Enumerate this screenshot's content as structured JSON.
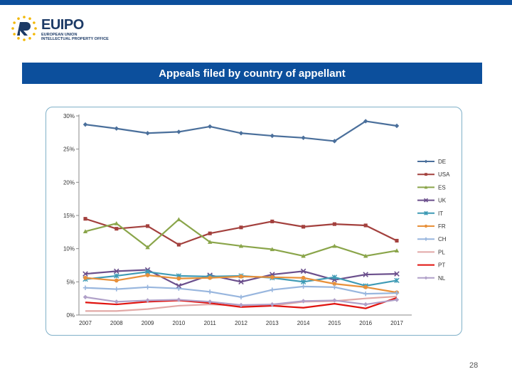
{
  "header": {
    "logo": {
      "icon": "euipo-circle-of-stars-icon",
      "name_prefix": "EU",
      "name_suffix": "IPO",
      "subtitle_line1": "EUROPEAN UNION",
      "subtitle_line2": "INTELLECTUAL PROPERTY OFFICE"
    }
  },
  "slide": {
    "title": "Appeals filed by country of appellant",
    "page_number": "28"
  },
  "colors": {
    "brand_blue": "#0c4f9c"
  },
  "chart_data": {
    "type": "line",
    "title": "Appeals filed by country of appellant",
    "xlabel": "",
    "ylabel": "",
    "x": [
      "2007",
      "2008",
      "2009",
      "2010",
      "2011",
      "2012",
      "2013",
      "2014",
      "2015",
      "2016",
      "2017"
    ],
    "ylim": [
      0,
      30
    ],
    "yticks": [
      0,
      5,
      10,
      15,
      20,
      25,
      30
    ],
    "ytick_labels": [
      "0%",
      "5%",
      "10%",
      "15%",
      "20%",
      "25%",
      "30%"
    ],
    "grid": false,
    "legend": "right",
    "series": [
      {
        "name": "DE",
        "color": "#4a6f9b",
        "marker": "diamond",
        "values": [
          28.7,
          28.1,
          27.4,
          27.6,
          28.4,
          27.4,
          27.0,
          26.7,
          26.2,
          29.2,
          28.5
        ]
      },
      {
        "name": "USA",
        "color": "#a3403d",
        "marker": "square",
        "values": [
          14.5,
          13.0,
          13.4,
          10.6,
          12.3,
          13.2,
          14.1,
          13.3,
          13.7,
          13.5,
          11.2
        ]
      },
      {
        "name": "ES",
        "color": "#8aa54a",
        "marker": "triangle",
        "values": [
          12.6,
          13.8,
          10.2,
          14.4,
          11.0,
          10.4,
          9.9,
          8.9,
          10.4,
          8.9,
          9.7
        ]
      },
      {
        "name": "UK",
        "color": "#6b4f8c",
        "marker": "x",
        "values": [
          6.2,
          6.6,
          6.8,
          4.4,
          6.0,
          5.0,
          6.1,
          6.6,
          5.3,
          6.1,
          6.2
        ]
      },
      {
        "name": "IT",
        "color": "#3f9bb5",
        "marker": "star",
        "values": [
          5.4,
          5.9,
          6.5,
          5.9,
          5.8,
          5.9,
          5.6,
          5.0,
          5.7,
          4.4,
          5.2
        ]
      },
      {
        "name": "FR",
        "color": "#e8903a",
        "marker": "circle",
        "values": [
          5.6,
          5.2,
          6.0,
          5.5,
          5.6,
          5.8,
          5.7,
          5.6,
          4.7,
          4.2,
          3.4
        ]
      },
      {
        "name": "CH",
        "color": "#98b6de",
        "marker": "plus",
        "values": [
          4.1,
          3.9,
          4.2,
          4.0,
          3.5,
          2.7,
          3.8,
          4.3,
          4.2,
          3.2,
          3.3
        ]
      },
      {
        "name": "PL",
        "color": "#e2a8a6",
        "marker": "none",
        "values": [
          0.6,
          0.6,
          0.9,
          1.4,
          1.6,
          1.4,
          1.4,
          2.0,
          2.1,
          2.5,
          2.8
        ]
      },
      {
        "name": "PT",
        "color": "#e0120e",
        "marker": "none",
        "values": [
          1.9,
          1.6,
          2.0,
          2.2,
          1.8,
          1.2,
          1.4,
          1.1,
          1.7,
          1.0,
          2.6
        ]
      },
      {
        "name": "NL",
        "color": "#b0a0c8",
        "marker": "diamond",
        "values": [
          2.7,
          2.0,
          2.2,
          2.3,
          2.0,
          1.5,
          1.6,
          2.1,
          2.2,
          1.6,
          2.3
        ]
      }
    ]
  }
}
